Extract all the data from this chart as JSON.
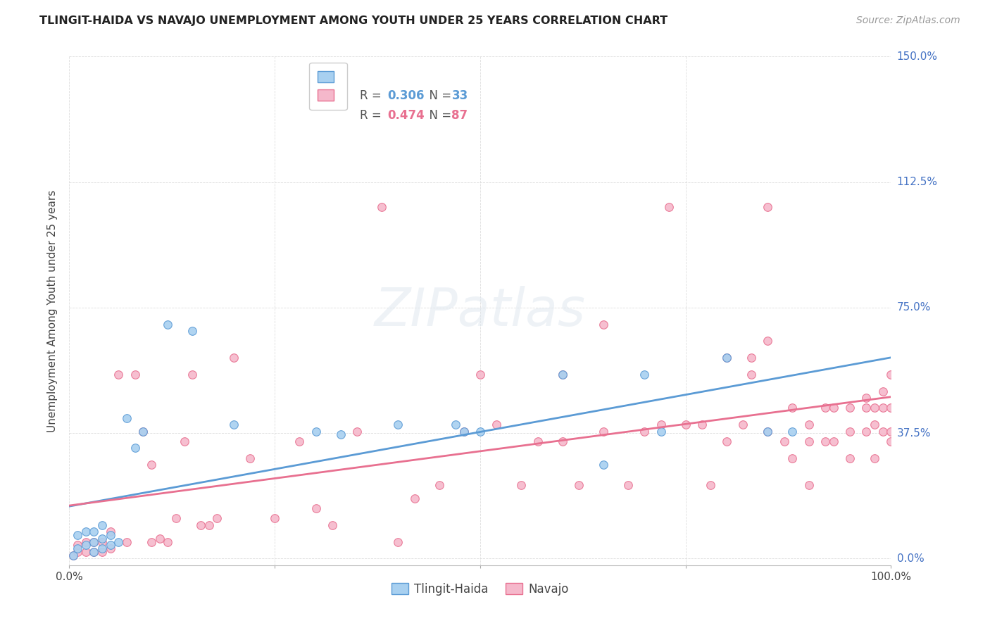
{
  "title": "TLINGIT-HAIDA VS NAVAJO UNEMPLOYMENT AMONG YOUTH UNDER 25 YEARS CORRELATION CHART",
  "source": "Source: ZipAtlas.com",
  "ylabel": "Unemployment Among Youth under 25 years",
  "xlim": [
    0.0,
    1.0
  ],
  "ylim": [
    -0.02,
    1.5
  ],
  "xtick_positions": [
    0.0,
    0.25,
    0.5,
    0.75,
    1.0
  ],
  "xtick_labels": [
    "0.0%",
    "",
    "",
    "",
    "100.0%"
  ],
  "ytick_values": [
    0.0,
    0.375,
    0.75,
    1.125,
    1.5
  ],
  "ytick_labels": [
    "0.0%",
    "37.5%",
    "75.0%",
    "112.5%",
    "150.0%"
  ],
  "tlingit_color": "#a8d0f0",
  "navajo_color": "#f5b8cb",
  "tlingit_edge_color": "#5b9bd5",
  "navajo_edge_color": "#e87090",
  "tlingit_line_color": "#5b9bd5",
  "navajo_line_color": "#e87090",
  "tlingit_R": 0.306,
  "tlingit_N": 33,
  "navajo_R": 0.474,
  "navajo_N": 87,
  "background_color": "#ffffff",
  "grid_color": "#dddddd",
  "watermark_color": "#e8e8e8",
  "tlingit_x": [
    0.005,
    0.01,
    0.01,
    0.02,
    0.02,
    0.03,
    0.03,
    0.03,
    0.04,
    0.04,
    0.04,
    0.05,
    0.05,
    0.06,
    0.07,
    0.08,
    0.09,
    0.12,
    0.15,
    0.2,
    0.3,
    0.33,
    0.4,
    0.47,
    0.48,
    0.5,
    0.6,
    0.65,
    0.7,
    0.72,
    0.8,
    0.85,
    0.88
  ],
  "tlingit_y": [
    0.01,
    0.03,
    0.07,
    0.04,
    0.08,
    0.02,
    0.05,
    0.08,
    0.03,
    0.06,
    0.1,
    0.04,
    0.07,
    0.05,
    0.42,
    0.33,
    0.38,
    0.7,
    0.68,
    0.4,
    0.38,
    0.37,
    0.4,
    0.4,
    0.38,
    0.38,
    0.55,
    0.28,
    0.55,
    0.38,
    0.6,
    0.38,
    0.38
  ],
  "navajo_x": [
    0.005,
    0.01,
    0.01,
    0.02,
    0.02,
    0.03,
    0.03,
    0.04,
    0.04,
    0.05,
    0.05,
    0.06,
    0.07,
    0.08,
    0.09,
    0.1,
    0.1,
    0.11,
    0.12,
    0.13,
    0.14,
    0.15,
    0.16,
    0.17,
    0.18,
    0.2,
    0.22,
    0.25,
    0.28,
    0.3,
    0.32,
    0.35,
    0.38,
    0.4,
    0.42,
    0.45,
    0.48,
    0.5,
    0.52,
    0.55,
    0.57,
    0.6,
    0.6,
    0.62,
    0.65,
    0.65,
    0.68,
    0.7,
    0.72,
    0.73,
    0.75,
    0.77,
    0.78,
    0.8,
    0.8,
    0.82,
    0.83,
    0.83,
    0.85,
    0.85,
    0.85,
    0.87,
    0.88,
    0.88,
    0.9,
    0.9,
    0.9,
    0.92,
    0.92,
    0.93,
    0.93,
    0.95,
    0.95,
    0.95,
    0.97,
    0.97,
    0.97,
    0.98,
    0.98,
    0.98,
    0.99,
    0.99,
    0.99,
    1.0,
    1.0,
    1.0,
    1.0
  ],
  "navajo_y": [
    0.01,
    0.02,
    0.04,
    0.02,
    0.05,
    0.02,
    0.05,
    0.02,
    0.05,
    0.03,
    0.08,
    0.55,
    0.05,
    0.55,
    0.38,
    0.05,
    0.28,
    0.06,
    0.05,
    0.12,
    0.35,
    0.55,
    0.1,
    0.1,
    0.12,
    0.6,
    0.3,
    0.12,
    0.35,
    0.15,
    0.1,
    0.38,
    1.05,
    0.05,
    0.18,
    0.22,
    0.38,
    0.55,
    0.4,
    0.22,
    0.35,
    0.35,
    0.55,
    0.22,
    0.38,
    0.7,
    0.22,
    0.38,
    0.4,
    1.05,
    0.4,
    0.4,
    0.22,
    0.35,
    0.6,
    0.4,
    0.6,
    0.55,
    0.65,
    0.38,
    1.05,
    0.35,
    0.3,
    0.45,
    0.22,
    0.35,
    0.4,
    0.35,
    0.45,
    0.35,
    0.45,
    0.3,
    0.38,
    0.45,
    0.38,
    0.45,
    0.48,
    0.3,
    0.4,
    0.45,
    0.38,
    0.45,
    0.5,
    0.35,
    0.38,
    0.45,
    0.55
  ]
}
